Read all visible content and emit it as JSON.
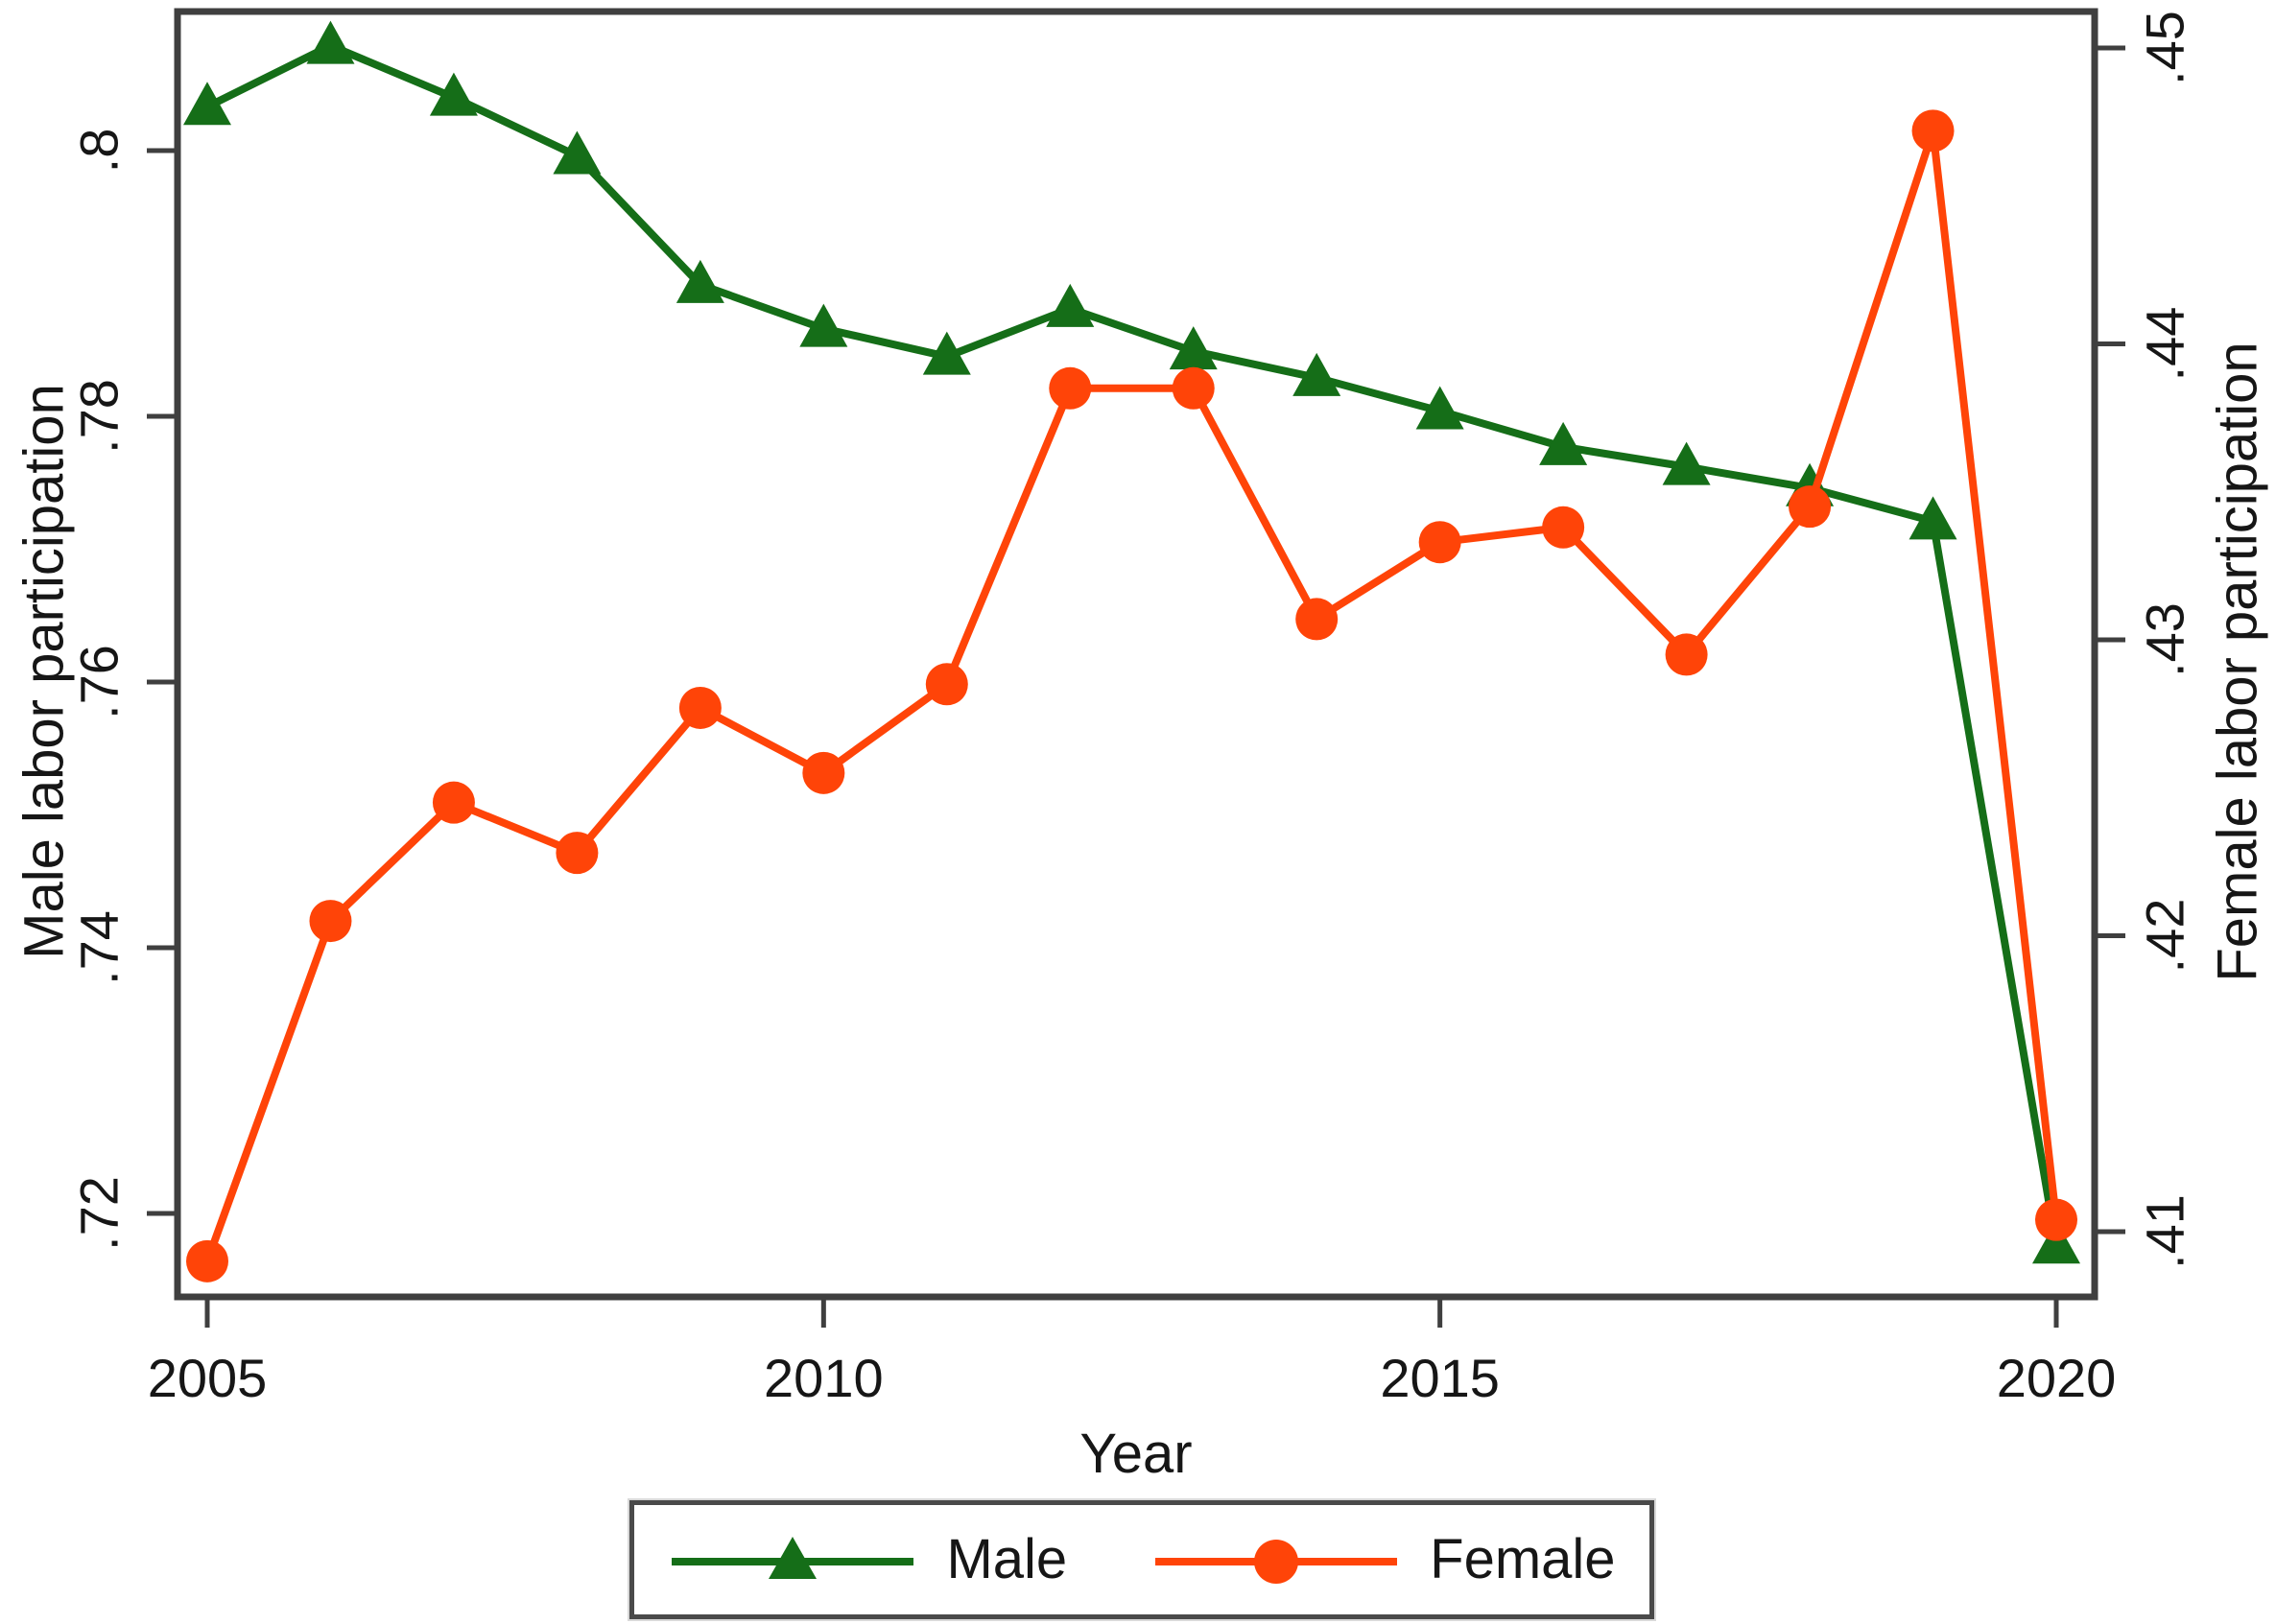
{
  "figure": {
    "background": "#ffffff",
    "frame_color": "#3f3f3f",
    "text_color": "#161616"
  },
  "chart_data": {
    "type": "line",
    "title": "",
    "x": [
      2005,
      2006,
      2007,
      2008,
      2009,
      2010,
      2011,
      2012,
      2013,
      2014,
      2015,
      2016,
      2017,
      2018,
      2019,
      2020
    ],
    "xlabel": "Year",
    "grid": "off",
    "legend_position": "bottom",
    "series": [
      {
        "name": "Male",
        "axis": "left",
        "color": "#156e18",
        "marker": "triangle",
        "values": [
          0.8033,
          0.8079,
          0.804,
          0.7996,
          0.7899,
          0.7866,
          0.7845,
          0.7881,
          0.7849,
          0.7829,
          0.7804,
          0.7777,
          0.7762,
          0.7746,
          0.7721,
          0.7176
        ]
      },
      {
        "name": "Female",
        "axis": "right",
        "color": "#ff4408",
        "marker": "circle",
        "values": [
          0.409,
          0.4205,
          0.4245,
          0.4228,
          0.4277,
          0.4255,
          0.4285,
          0.4385,
          0.4385,
          0.4307,
          0.4333,
          0.4338,
          0.4295,
          0.4345,
          0.4472,
          0.4104
        ]
      }
    ],
    "left_axis": {
      "title": "Male labor participation",
      "range": [
        0.714,
        0.8105
      ],
      "ticks": [
        {
          "v": 0.72,
          "label": ".72"
        },
        {
          "v": 0.74,
          "label": ".74"
        },
        {
          "v": 0.76,
          "label": ".76"
        },
        {
          "v": 0.78,
          "label": ".78"
        },
        {
          "v": 0.8,
          "label": ".8"
        }
      ]
    },
    "right_axis": {
      "title": "Female labor participation",
      "range": [
        0.4078,
        0.4512
      ],
      "ticks": [
        {
          "v": 0.41,
          "label": ".41"
        },
        {
          "v": 0.42,
          "label": ".42"
        },
        {
          "v": 0.43,
          "label": ".43"
        },
        {
          "v": 0.44,
          "label": ".44"
        },
        {
          "v": 0.45,
          "label": ".45"
        }
      ]
    },
    "x_axis": {
      "title": "Year",
      "range": [
        2004.75,
        2020.3
      ],
      "ticks": [
        {
          "v": 2005,
          "label": "2005"
        },
        {
          "v": 2010,
          "label": "2010"
        },
        {
          "v": 2015,
          "label": "2015"
        },
        {
          "v": 2020,
          "label": "2020"
        }
      ]
    },
    "legend": {
      "items": [
        {
          "label": "Male"
        },
        {
          "label": "Female"
        }
      ]
    }
  }
}
